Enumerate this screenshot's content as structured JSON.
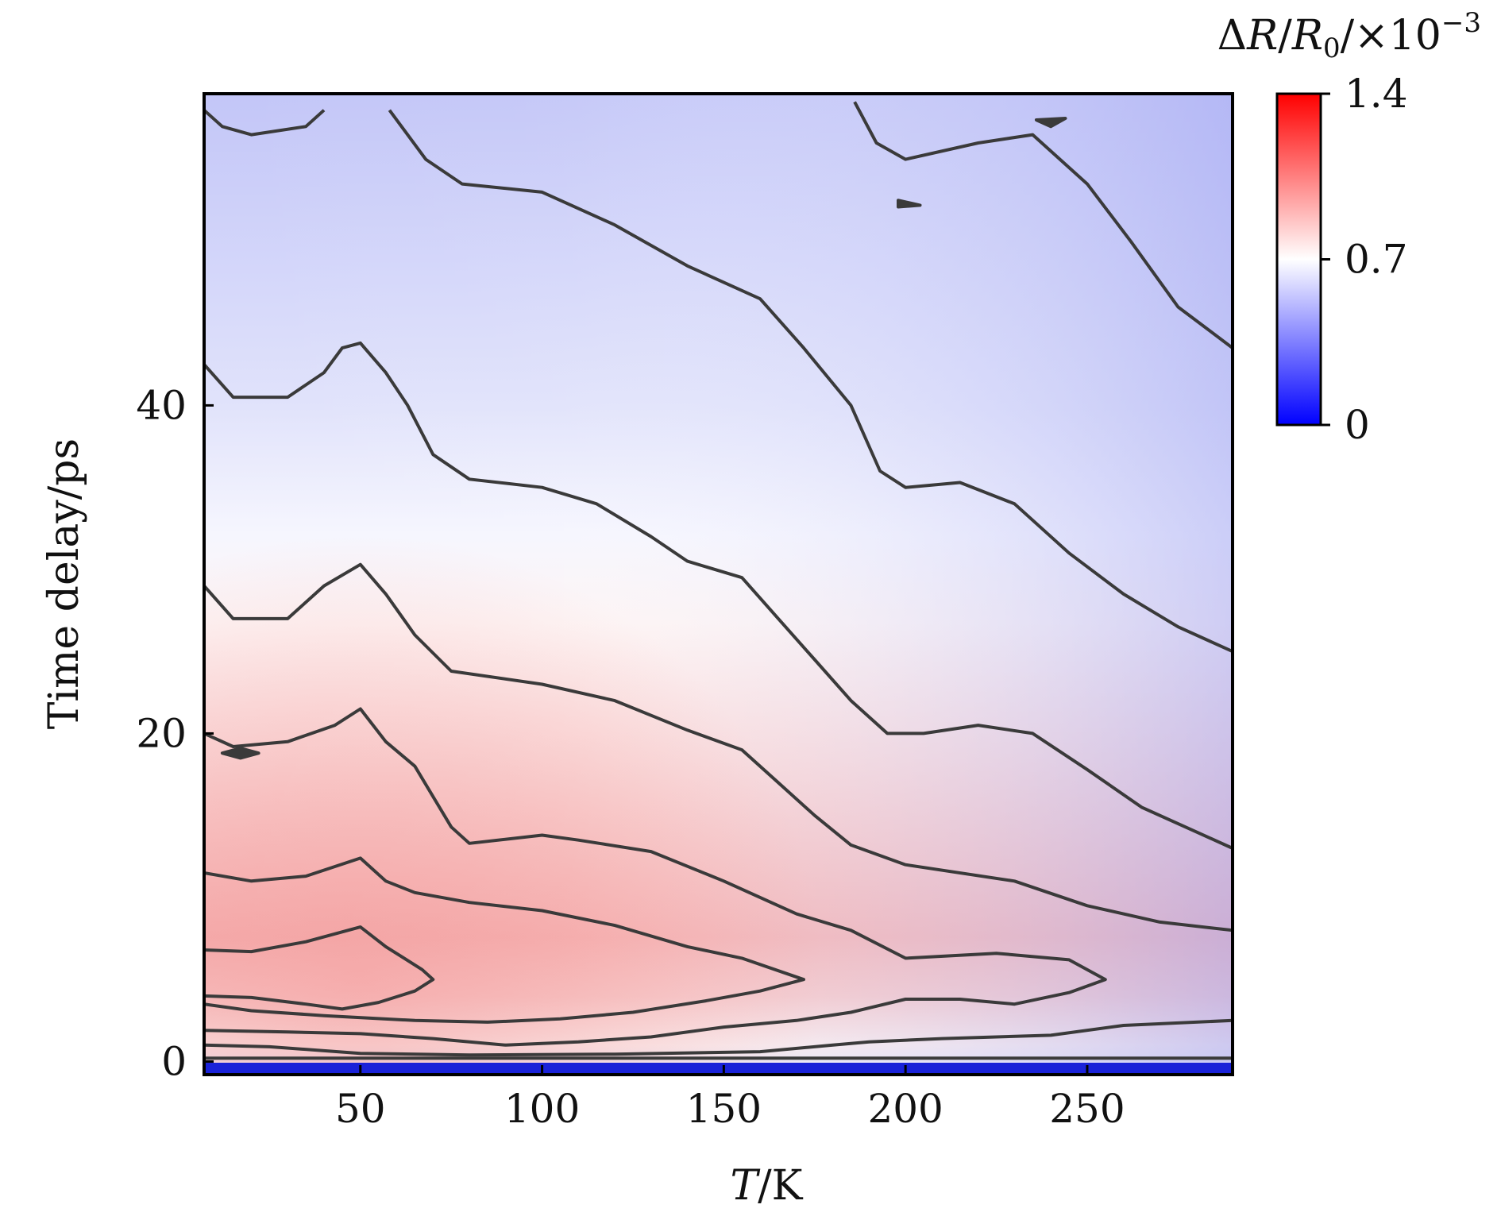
{
  "chart_data": {
    "type": "heatmap",
    "subtype": "filled-contour",
    "xlabel": {
      "italic": "T",
      "rest": "/K"
    },
    "ylabel": "Time delay/ps",
    "colorbar_label": {
      "delta": "Δ",
      "R": "R",
      "slash1": "/",
      "R0": "R",
      "sub0": "0",
      "slash2": "/×10",
      "exp": "−3"
    },
    "xlim": [
      7,
      290
    ],
    "ylim": [
      -0.8,
      59
    ],
    "xticks": [
      50,
      100,
      150,
      200,
      250
    ],
    "xtick_labels": [
      "50",
      "100",
      "150",
      "200",
      "250"
    ],
    "yticks": [
      0,
      20,
      40
    ],
    "ytick_labels": [
      "0",
      "20",
      "40"
    ],
    "colorbar": {
      "range": [
        0,
        1.4
      ],
      "ticks": [
        0,
        0.7,
        1.4
      ],
      "tick_labels": [
        "0",
        "0.7",
        "1.4"
      ],
      "colors": [
        "#0000ff",
        "#ffffff",
        "#ff0000"
      ]
    },
    "contour_color": "#3a3a3a",
    "contours": [
      {
        "name": "level-1",
        "points": [
          [
            7,
            58
          ],
          [
            12,
            57
          ],
          [
            20,
            56.5
          ],
          [
            35,
            57
          ],
          [
            40,
            58
          ]
        ]
      },
      {
        "name": "level-2",
        "points": [
          [
            58,
            58
          ],
          [
            68,
            55
          ],
          [
            78,
            53.5
          ],
          [
            100,
            53
          ],
          [
            120,
            51
          ],
          [
            140,
            48.5
          ],
          [
            160,
            46.5
          ],
          [
            172,
            43.5
          ],
          [
            185,
            40
          ],
          [
            193,
            36
          ],
          [
            200,
            35
          ],
          [
            215,
            35.3
          ],
          [
            230,
            34
          ],
          [
            245,
            31
          ],
          [
            260,
            28.5
          ],
          [
            275,
            26.5
          ],
          [
            290,
            25
          ]
        ]
      },
      {
        "name": "level-3",
        "points": [
          [
            186,
            58.5
          ],
          [
            192,
            56
          ],
          [
            200,
            55
          ],
          [
            220,
            56
          ],
          [
            235,
            56.5
          ],
          [
            250,
            53.5
          ],
          [
            262,
            50
          ],
          [
            275,
            46
          ],
          [
            290,
            43.5
          ]
        ]
      },
      {
        "name": "level-4",
        "points": [
          [
            7,
            42.5
          ],
          [
            15,
            40.5
          ],
          [
            30,
            40.5
          ],
          [
            40,
            42
          ],
          [
            45,
            43.5
          ],
          [
            50,
            43.8
          ],
          [
            57,
            42
          ],
          [
            63,
            40
          ],
          [
            70,
            37
          ],
          [
            80,
            35.5
          ],
          [
            100,
            35
          ],
          [
            115,
            34
          ],
          [
            130,
            32
          ],
          [
            140,
            30.5
          ],
          [
            155,
            29.5
          ],
          [
            165,
            27
          ],
          [
            175,
            24.5
          ],
          [
            185,
            22
          ],
          [
            195,
            20
          ],
          [
            205,
            20
          ],
          [
            220,
            20.5
          ],
          [
            235,
            20
          ],
          [
            250,
            17.8
          ],
          [
            265,
            15.5
          ],
          [
            280,
            14
          ],
          [
            290,
            13
          ]
        ]
      },
      {
        "name": "level-5",
        "points": [
          [
            7,
            29
          ],
          [
            15,
            27
          ],
          [
            30,
            27
          ],
          [
            40,
            29
          ],
          [
            50,
            30.3
          ],
          [
            57,
            28.5
          ],
          [
            65,
            26
          ],
          [
            75,
            23.8
          ],
          [
            100,
            23
          ],
          [
            120,
            22
          ],
          [
            140,
            20.2
          ],
          [
            155,
            19
          ],
          [
            165,
            17
          ],
          [
            175,
            15
          ],
          [
            185,
            13.2
          ],
          [
            200,
            12
          ],
          [
            230,
            11
          ],
          [
            250,
            9.5
          ],
          [
            270,
            8.5
          ],
          [
            290,
            8
          ]
        ]
      },
      {
        "name": "level-6",
        "points": [
          [
            7,
            20
          ],
          [
            15,
            19.2
          ],
          [
            30,
            19.5
          ],
          [
            43,
            20.5
          ],
          [
            50,
            21.5
          ],
          [
            57,
            19.5
          ],
          [
            65,
            18
          ],
          [
            75,
            14.3
          ],
          [
            80,
            13.3
          ],
          [
            100,
            13.8
          ],
          [
            110,
            13.5
          ],
          [
            130,
            12.8
          ],
          [
            150,
            11
          ],
          [
            170,
            9
          ],
          [
            185,
            8
          ],
          [
            200,
            6.3
          ],
          [
            225,
            6.6
          ],
          [
            245,
            6.2
          ],
          [
            255,
            5
          ],
          [
            245,
            4.2
          ],
          [
            230,
            3.5
          ],
          [
            215,
            3.8
          ],
          [
            200,
            3.8
          ],
          [
            185,
            3
          ],
          [
            170,
            2.5
          ],
          [
            150,
            2.1
          ],
          [
            130,
            1.5
          ],
          [
            110,
            1.2
          ],
          [
            90,
            1.0
          ],
          [
            70,
            1.4
          ],
          [
            50,
            1.7
          ],
          [
            30,
            1.8
          ],
          [
            7,
            1.9
          ]
        ]
      },
      {
        "name": "level-7",
        "points": [
          [
            7,
            11.5
          ],
          [
            20,
            11
          ],
          [
            35,
            11.3
          ],
          [
            50,
            12.4
          ],
          [
            57,
            11
          ],
          [
            65,
            10.3
          ],
          [
            80,
            9.7
          ],
          [
            100,
            9.2
          ],
          [
            120,
            8.3
          ],
          [
            140,
            7
          ],
          [
            155,
            6.3
          ],
          [
            172,
            5
          ],
          [
            160,
            4.3
          ],
          [
            145,
            3.7
          ],
          [
            125,
            3
          ],
          [
            105,
            2.6
          ],
          [
            85,
            2.4
          ],
          [
            65,
            2.5
          ],
          [
            40,
            2.8
          ],
          [
            20,
            3.1
          ],
          [
            7,
            3.5
          ]
        ]
      },
      {
        "name": "level-8",
        "points": [
          [
            7,
            6.8
          ],
          [
            20,
            6.7
          ],
          [
            35,
            7.3
          ],
          [
            50,
            8.2
          ],
          [
            57,
            7
          ],
          [
            67,
            5.6
          ],
          [
            70,
            5
          ],
          [
            65,
            4.3
          ],
          [
            55,
            3.6
          ],
          [
            45,
            3.2
          ],
          [
            35,
            3.5
          ],
          [
            20,
            3.9
          ],
          [
            7,
            4
          ]
        ]
      },
      {
        "name": "level-9",
        "points": [
          [
            7,
            1
          ],
          [
            25,
            0.9
          ],
          [
            50,
            0.5
          ],
          [
            80,
            0.4
          ],
          [
            120,
            0.45
          ],
          [
            160,
            0.6
          ],
          [
            180,
            1.0
          ],
          [
            190,
            1.2
          ],
          [
            210,
            1.4
          ],
          [
            240,
            1.6
          ],
          [
            260,
            2.2
          ],
          [
            290,
            2.5
          ]
        ]
      },
      {
        "name": "level-10",
        "points": [
          [
            7,
            0.2
          ],
          [
            290,
            0.2
          ]
        ]
      },
      {
        "name": "island-1",
        "closed": true,
        "points": [
          [
            17,
            18.5
          ],
          [
            22,
            18.8
          ],
          [
            17,
            19.1
          ],
          [
            12,
            18.8
          ]
        ]
      },
      {
        "name": "island-2",
        "closed": true,
        "points": [
          [
            198,
            52.5
          ],
          [
            204,
            52.2
          ],
          [
            198,
            52.1
          ]
        ]
      },
      {
        "name": "island-3",
        "closed": true,
        "points": [
          [
            240,
            57
          ],
          [
            244,
            57.5
          ],
          [
            236,
            57.4
          ]
        ]
      }
    ]
  }
}
